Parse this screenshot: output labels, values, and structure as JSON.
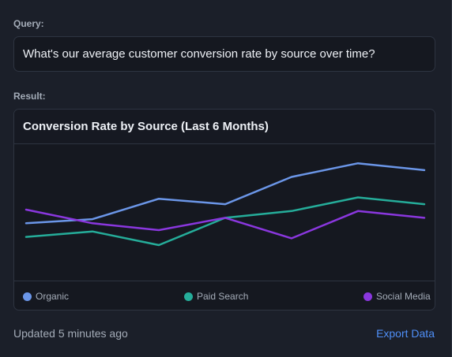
{
  "query": {
    "label": "Query:",
    "text": "What's our average customer conversion rate by source over time?"
  },
  "result": {
    "label": "Result:",
    "chart_title": "Conversion Rate by Source (Last 6 Months)"
  },
  "chart_data": {
    "type": "line",
    "title": "Conversion Rate by Source (Last 6 Months)",
    "x": [
      1,
      2,
      3,
      4,
      5,
      6,
      7
    ],
    "ylim": [
      0,
      10
    ],
    "grid": false,
    "legend_placement": "bottom",
    "series": [
      {
        "name": "Organic",
        "color": "#6b96e8",
        "values": [
          4.2,
          4.5,
          6.0,
          5.6,
          7.6,
          8.6,
          8.1
        ]
      },
      {
        "name": "Paid Search",
        "color": "#25ad9a",
        "values": [
          3.2,
          3.6,
          2.6,
          4.6,
          5.1,
          6.1,
          5.6
        ]
      },
      {
        "name": "Social Media",
        "color": "#8a37de",
        "values": [
          5.2,
          4.2,
          3.7,
          4.6,
          3.1,
          5.1,
          4.6
        ]
      }
    ]
  },
  "footer": {
    "status": "Updated 5 minutes ago",
    "export_label": "Export Data"
  }
}
